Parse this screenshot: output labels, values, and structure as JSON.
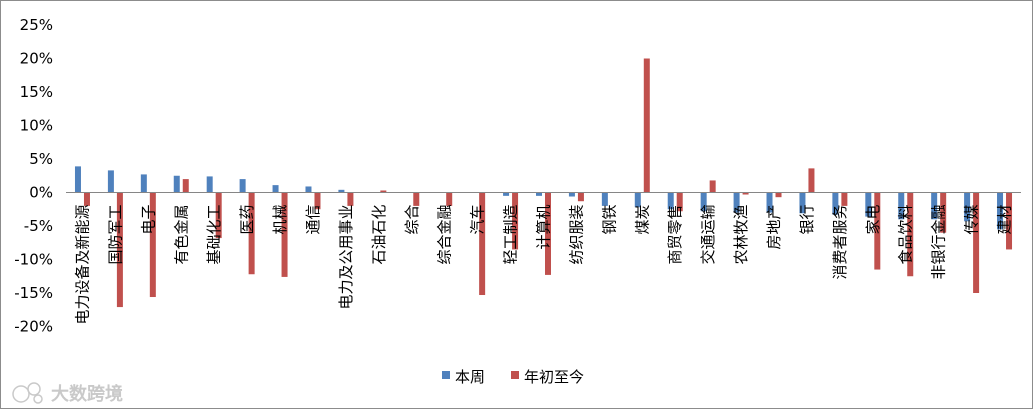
{
  "chart_data": {
    "type": "bar",
    "categories": [
      "电力设备及新能源",
      "国防军工",
      "电子",
      "有色金属",
      "基础化工",
      "医药",
      "机械",
      "通信",
      "电力及公用事业",
      "石油石化",
      "综合",
      "综合金融",
      "汽车",
      "轻工制造",
      "计算机",
      "纺织服装",
      "钢铁",
      "煤炭",
      "商贸零售",
      "交通运输",
      "农林牧渔",
      "房地产",
      "银行",
      "消费者服务",
      "家电",
      "食品饮料",
      "非银行金融",
      "传媒",
      "建材"
    ],
    "series": [
      {
        "name": "本周",
        "color": "#4f81bd",
        "values": [
          3.9,
          3.3,
          2.7,
          2.5,
          2.4,
          2.0,
          1.1,
          0.9,
          0.4,
          0.0,
          0.0,
          0.0,
          0.0,
          -0.5,
          -0.5,
          -0.6,
          -2.0,
          -2.2,
          -2.5,
          -2.8,
          -3.0,
          -3.0,
          -3.1,
          -3.3,
          -3.6,
          -4.0,
          -4.0,
          -4.3,
          -5.5
        ]
      },
      {
        "name": "年初至今",
        "color": "#c0504d",
        "values": [
          -2.0,
          -17.1,
          -15.6,
          2.0,
          -6.8,
          -12.2,
          -12.6,
          -2.5,
          -2.0,
          0.3,
          -2.0,
          -2.0,
          -15.3,
          -8.5,
          -12.3,
          -1.3,
          0.0,
          20.0,
          -2.8,
          1.8,
          -0.3,
          -0.7,
          3.6,
          -2.0,
          -11.5,
          -12.5,
          -6.0,
          -15.0,
          -8.5
        ]
      }
    ],
    "ylim": [
      -20,
      25
    ],
    "yticks": [
      "-20%",
      "-15%",
      "-10%",
      "-5%",
      "0%",
      "5%",
      "10%",
      "15%",
      "20%",
      "25%"
    ],
    "ytick_values": [
      -20,
      -15,
      -10,
      -5,
      0,
      5,
      10,
      15,
      20,
      25
    ],
    "grid": false,
    "legend_position": "bottom-center",
    "xlabel": "",
    "ylabel": "",
    "title": ""
  },
  "watermark": {
    "text": "大数跨境",
    "icon": "camera-logo-icon"
  }
}
